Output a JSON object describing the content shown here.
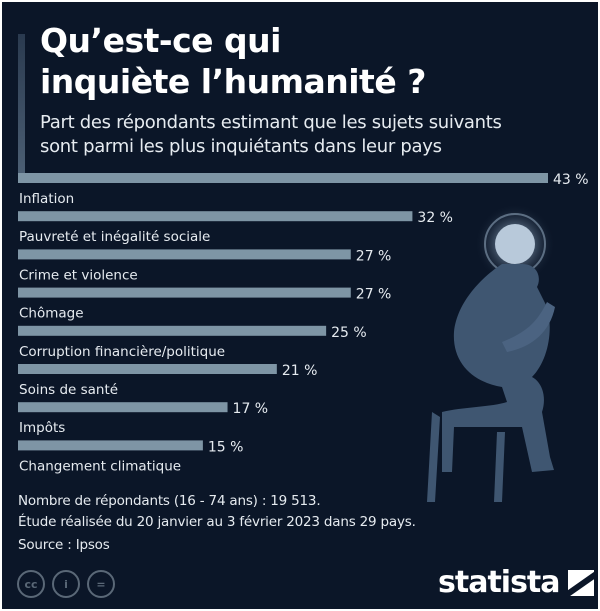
{
  "header": {
    "title_line1": "Qu’est-ce qui",
    "title_line2": "inquiète l’humanité ?",
    "subtitle_line1": "Part des répondants estimant que les sujets suivants",
    "subtitle_line2": "sont parmi les plus inquiétants dans leur pays"
  },
  "chart_data": {
    "type": "bar",
    "orientation": "horizontal",
    "title": "Qu’est-ce qui inquiète l’humanité ?",
    "categories": [
      "Inflation",
      "Pauvreté et inégalité sociale",
      "Crime et violence",
      "Chômage",
      "Corruption financière/politique",
      "Soins de santé",
      "Impôts",
      "Changement climatique"
    ],
    "values": [
      43,
      32,
      27,
      27,
      25,
      21,
      17,
      15
    ],
    "value_labels": [
      "43 %",
      "32 %",
      "27 %",
      "27 %",
      "25 %",
      "21 %",
      "17 %",
      "15 %"
    ],
    "xlim": [
      0,
      43
    ],
    "unit": "%",
    "bar_color": "#7e95a5"
  },
  "notes": {
    "line1": "Nombre de répondants (16 - 74 ans) : 19 513.",
    "line2": "Étude réalisée du 20 janvier au 3 février 2023 dans 29 pays.",
    "source": "Source : Ipsos"
  },
  "footer": {
    "cc": "cc",
    "by": "i",
    "nd": "=",
    "brand": "statista"
  }
}
